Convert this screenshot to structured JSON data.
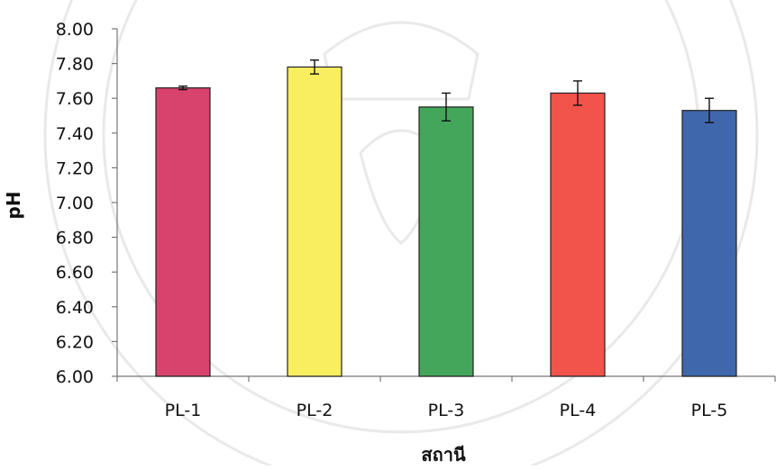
{
  "chart_data": {
    "type": "bar",
    "categories": [
      "PL-1",
      "PL-2",
      "PL-3",
      "PL-4",
      "PL-5"
    ],
    "values": [
      7.66,
      7.78,
      7.55,
      7.63,
      7.53
    ],
    "error_bars": [
      0.01,
      0.04,
      0.08,
      0.07,
      0.07
    ],
    "title": "",
    "xlabel": "สถานี",
    "ylabel": "pH",
    "ylim": [
      6.0,
      8.0
    ],
    "yticks": [
      "6.00",
      "6.20",
      "6.40",
      "6.60",
      "6.80",
      "7.00",
      "7.20",
      "7.40",
      "7.60",
      "7.80",
      "8.00"
    ],
    "colors": [
      "#d8436e",
      "#f8ee60",
      "#44a65a",
      "#f2534a",
      "#3f68ac"
    ],
    "grid": false,
    "legend": "none"
  }
}
